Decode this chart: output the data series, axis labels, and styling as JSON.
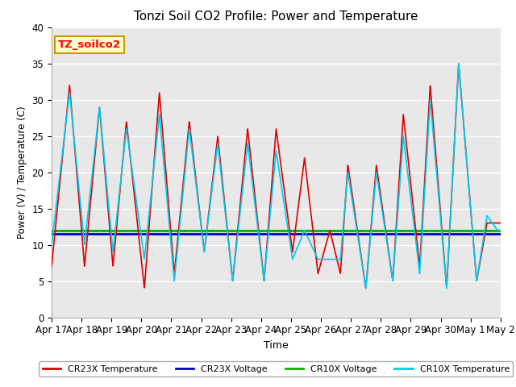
{
  "title": "Tonzi Soil CO2 Profile: Power and Temperature",
  "xlabel": "Time",
  "ylabel": "Power (V) / Temperature (C)",
  "ylim": [
    0,
    40
  ],
  "xlim": [
    0,
    15
  ],
  "plot_background": "#e8e8e8",
  "cr23x_voltage": 11.55,
  "cr10x_voltage": 12.0,
  "cr23x_color": "#dd0000",
  "cr23x_voltage_color": "#0000cc",
  "cr10x_voltage_color": "#00bb00",
  "cr10x_color": "#00ccee",
  "tick_labels": [
    "Apr 17",
    "Apr 18",
    "Apr 19",
    "Apr 20",
    "Apr 21",
    "Apr 22",
    "Apr 23",
    "Apr 24",
    "Apr 25",
    "Apr 26",
    "Apr 27",
    "Apr 28",
    "Apr 29",
    "Apr 30",
    "May 1",
    "May 2"
  ],
  "annotation_text": "TZ_soilco2",
  "annotation_bg": "#ffffcc",
  "annotation_border": "#cc9900",
  "legend_entries": [
    "CR23X Temperature",
    "CR23X Voltage",
    "CR10X Voltage",
    "CR10X Temperature"
  ],
  "grid_color": "#cccccc",
  "linewidth": 1.2,
  "peak_days": [
    0.6,
    1.6,
    2.5,
    3.6,
    4.6,
    5.55,
    6.55,
    7.5,
    8.45,
    9.3,
    9.9,
    10.85,
    11.75,
    12.65,
    13.6,
    14.55
  ],
  "peak_vals_r": [
    32,
    29,
    27,
    31,
    27,
    25,
    26,
    26,
    22,
    12,
    21,
    21,
    28,
    32,
    35,
    13
  ],
  "trough_days": [
    1.1,
    2.05,
    3.1,
    4.1,
    5.1,
    6.05,
    7.1,
    8.05,
    8.9,
    9.65,
    10.5,
    11.4,
    12.3,
    13.2,
    14.2,
    14.9
  ],
  "trough_vals_r": [
    7,
    7,
    4,
    6,
    9,
    5,
    5,
    9,
    6,
    6,
    4,
    5,
    7,
    4,
    5,
    13
  ],
  "peak_vals_c": [
    31,
    29,
    26,
    28,
    26,
    24,
    24,
    23,
    12,
    8,
    20,
    20,
    25,
    30,
    35,
    14
  ],
  "trough_vals_c": [
    10,
    9,
    8,
    5,
    9,
    5,
    5,
    8,
    8,
    8,
    4,
    5,
    6,
    4,
    5,
    12
  ]
}
